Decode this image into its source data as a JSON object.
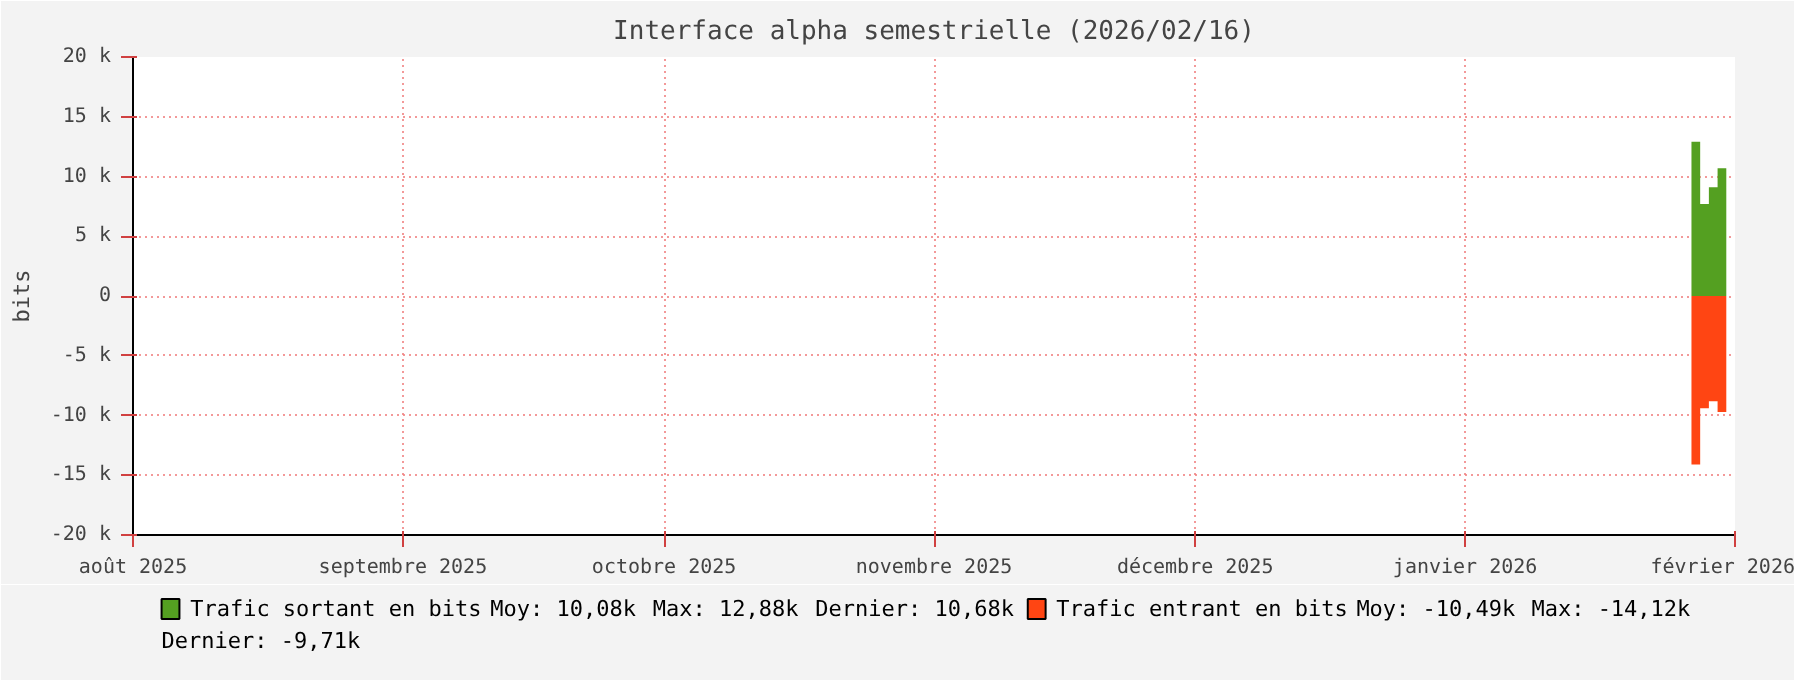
{
  "chart_data": {
    "type": "area",
    "title": "Interface alpha semestrielle (2026/02/16)",
    "ylabel": "bits",
    "x": [
      "2026-01-27",
      "2026-01-28",
      "2026-01-29",
      "2026-01-30",
      "2026-01-31"
    ],
    "series": [
      {
        "name": "Trafic sortant en bits",
        "color": "#54a021",
        "values": [
          12.9,
          7.7,
          9.1,
          10.7,
          10.7
        ]
      },
      {
        "name": "Trafic entrant en bits",
        "color": "#ff4513",
        "values": [
          -14.1,
          -9.4,
          -8.8,
          -9.7,
          -9.7
        ]
      }
    ],
    "xlim": [
      "2025-08-01",
      "2026-02-01"
    ],
    "xticks": [
      {
        "value": "2025-08-01",
        "label": "août 2025"
      },
      {
        "value": "2025-09-01",
        "label": "septembre 2025"
      },
      {
        "value": "2025-10-01",
        "label": "octobre 2025"
      },
      {
        "value": "2025-11-01",
        "label": "novembre 2025"
      },
      {
        "value": "2025-12-01",
        "label": "décembre 2025"
      },
      {
        "value": "2026-01-01",
        "label": "janvier 2026"
      },
      {
        "value": "2026-02-01",
        "label": "février 2026"
      }
    ],
    "ylim": [
      -20,
      20
    ],
    "yticks": [
      {
        "value": 20,
        "label": "20 k"
      },
      {
        "value": 15,
        "label": "15 k"
      },
      {
        "value": 10,
        "label": "10 k"
      },
      {
        "value": 5,
        "label": "5 k"
      },
      0,
      {
        "value": -5,
        "label": "-5 k"
      },
      {
        "value": -10,
        "label": "-10 k"
      },
      {
        "value": -15,
        "label": "-15 k"
      },
      {
        "value": -20,
        "label": "-20 k"
      }
    ],
    "grid": true,
    "legend": "bottom",
    "annotations": [
      "Moy: 10,08k",
      "Max: 12,88k",
      "Dernier: 10,68k",
      "Moy: -10,49k",
      "Max: -14,12k",
      "Dernier: -9,71k"
    ]
  }
}
